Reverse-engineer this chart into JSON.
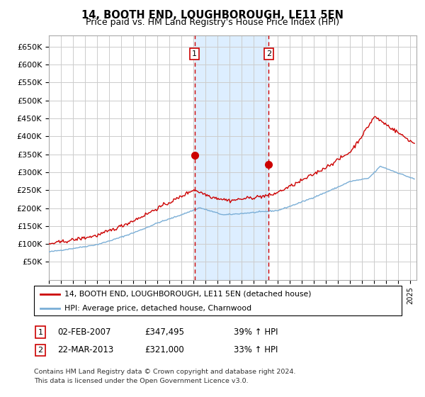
{
  "title": "14, BOOTH END, LOUGHBOROUGH, LE11 5EN",
  "subtitle": "Price paid vs. HM Land Registry's House Price Index (HPI)",
  "ylabel_ticks": [
    "£650K",
    "£600K",
    "£550K",
    "£500K",
    "£450K",
    "£400K",
    "£350K",
    "£300K",
    "£250K",
    "£200K",
    "£150K",
    "£100K",
    "£50K"
  ],
  "ytick_values": [
    650000,
    600000,
    550000,
    500000,
    450000,
    400000,
    350000,
    300000,
    250000,
    200000,
    150000,
    100000,
    50000
  ],
  "xlim_start": 1995.0,
  "xlim_end": 2025.5,
  "ylim_min": 0,
  "ylim_max": 680000,
  "sale1_date": 2007.09,
  "sale1_value": 347495,
  "sale2_date": 2013.23,
  "sale2_value": 321000,
  "hpi_line_color": "#7aaed6",
  "price_line_color": "#cc0000",
  "shaded_region_color": "#ddeeff",
  "grid_color": "#cccccc",
  "background_color": "#ffffff",
  "legend_label_price": "14, BOOTH END, LOUGHBOROUGH, LE11 5EN (detached house)",
  "legend_label_hpi": "HPI: Average price, detached house, Charnwood",
  "ann1_date": "02-FEB-2007",
  "ann1_price": "£347,495",
  "ann1_hpi": "39% ↑ HPI",
  "ann2_date": "22-MAR-2013",
  "ann2_price": "£321,000",
  "ann2_hpi": "33% ↑ HPI",
  "footer_line1": "Contains HM Land Registry data © Crown copyright and database right 2024.",
  "footer_line2": "This data is licensed under the Open Government Licence v3.0.",
  "title_fontsize": 10.5,
  "subtitle_fontsize": 9
}
